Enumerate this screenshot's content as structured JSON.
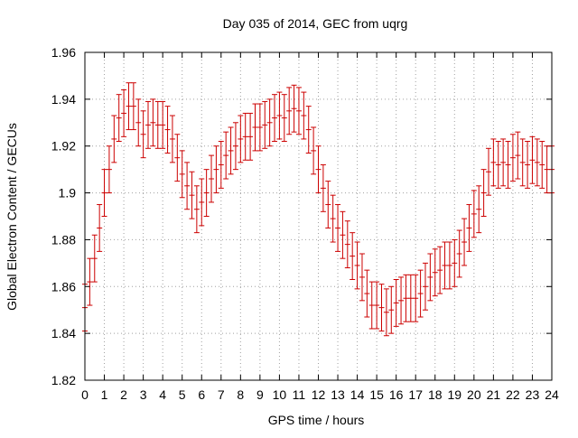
{
  "chart_data": {
    "type": "line",
    "title": "Day 035 of 2014, GEC from uqrg",
    "xlabel": "GPS time / hours",
    "ylabel": "Global Electron Content / GECUs",
    "xlim": [
      0,
      24
    ],
    "ylim": [
      1.82,
      1.96
    ],
    "xticks": [
      0,
      1,
      2,
      3,
      4,
      5,
      6,
      7,
      8,
      9,
      10,
      11,
      12,
      13,
      14,
      15,
      16,
      17,
      18,
      19,
      20,
      21,
      22,
      23,
      24
    ],
    "yticks": [
      1.82,
      1.84,
      1.86,
      1.88,
      1.9,
      1.92,
      1.94,
      1.96
    ],
    "ytick_labels": [
      "1.82",
      "1.84",
      "1.86",
      "1.88",
      "1.9",
      "1.92",
      "1.94",
      "1.96"
    ],
    "grid": true,
    "colors": {
      "series": "#cc0000",
      "grid": "#a0a0a0",
      "axis": "#000000"
    },
    "series": [
      {
        "name": "GEC",
        "error": 0.01,
        "x": [
          0.0,
          0.25,
          0.5,
          0.75,
          1.0,
          1.25,
          1.5,
          1.75,
          2.0,
          2.25,
          2.5,
          2.75,
          3.0,
          3.25,
          3.5,
          3.75,
          4.0,
          4.25,
          4.5,
          4.75,
          5.0,
          5.25,
          5.5,
          5.75,
          6.0,
          6.25,
          6.5,
          6.75,
          7.0,
          7.25,
          7.5,
          7.75,
          8.0,
          8.25,
          8.5,
          8.75,
          9.0,
          9.25,
          9.5,
          9.75,
          10.0,
          10.25,
          10.5,
          10.75,
          11.0,
          11.25,
          11.5,
          11.75,
          12.0,
          12.25,
          12.5,
          12.75,
          13.0,
          13.25,
          13.5,
          13.75,
          14.0,
          14.25,
          14.5,
          14.75,
          15.0,
          15.25,
          15.5,
          15.75,
          16.0,
          16.25,
          16.5,
          16.75,
          17.0,
          17.25,
          17.5,
          17.75,
          18.0,
          18.25,
          18.5,
          18.75,
          19.0,
          19.25,
          19.5,
          19.75,
          20.0,
          20.25,
          20.5,
          20.75,
          21.0,
          21.25,
          21.5,
          21.75,
          22.0,
          22.25,
          22.5,
          22.75,
          23.0,
          23.25,
          23.5,
          23.75,
          24.0
        ],
        "y": [
          1.851,
          1.862,
          1.872,
          1.885,
          1.9,
          1.91,
          1.923,
          1.932,
          1.934,
          1.937,
          1.937,
          1.93,
          1.925,
          1.929,
          1.93,
          1.929,
          1.929,
          1.927,
          1.923,
          1.915,
          1.908,
          1.903,
          1.899,
          1.893,
          1.896,
          1.9,
          1.906,
          1.91,
          1.912,
          1.916,
          1.918,
          1.92,
          1.923,
          1.924,
          1.924,
          1.928,
          1.928,
          1.929,
          1.93,
          1.932,
          1.933,
          1.932,
          1.935,
          1.936,
          1.935,
          1.933,
          1.927,
          1.918,
          1.91,
          1.902,
          1.895,
          1.889,
          1.885,
          1.882,
          1.878,
          1.873,
          1.869,
          1.864,
          1.857,
          1.852,
          1.852,
          1.851,
          1.849,
          1.85,
          1.853,
          1.854,
          1.855,
          1.855,
          1.855,
          1.857,
          1.86,
          1.864,
          1.866,
          1.867,
          1.869,
          1.869,
          1.87,
          1.874,
          1.879,
          1.885,
          1.891,
          1.893,
          1.9,
          1.909,
          1.913,
          1.912,
          1.913,
          1.912,
          1.915,
          1.916,
          1.913,
          1.912,
          1.914,
          1.913,
          1.912,
          1.91,
          1.91
        ]
      }
    ]
  }
}
